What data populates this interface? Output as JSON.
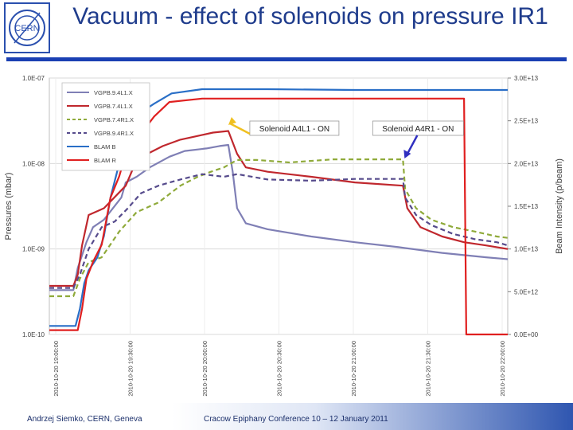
{
  "slide": {
    "title": "Vacuum - effect of solenoids on pressure IR1",
    "logo_text": "CERN",
    "footer_left": "Andrzej Siemko, CERN, Geneva",
    "footer_center": "Cracow Epiphany Conference   10 – 12 January 2011"
  },
  "colors": {
    "title": "#1f3c8c",
    "bar": "#1a3fb3"
  },
  "chart_data": {
    "type": "line",
    "ylabel": "Pressures (mbar)",
    "y2label": "Beam Intensity (p/beam)",
    "y_scale": "log",
    "ylim": [
      1e-10,
      1e-07
    ],
    "y_ticks": [
      "1.0E-07",
      "1.0E-08",
      "1.0E-09",
      "1.0E-10"
    ],
    "y2lim": [
      0,
      30000000000000.0
    ],
    "y2_ticks": [
      "3.0E+13",
      "2.5E+13",
      "2.0E+13",
      "1.5E+13",
      "1.0E+13",
      "5.0E+12",
      "0.0E+00"
    ],
    "x_ticks": [
      "2010-10-20 19:00:00",
      "2010-10-20 19:30:00",
      "2010-10-20 20:00:00",
      "2010-10-20 20:30:00",
      "2010-10-20 21:00:00",
      "2010-10-20 21:30:00",
      "2010-10-20 22:00:00"
    ],
    "legend_position": "top-left",
    "annotations": [
      {
        "text": "Solenoid A4L1 - ON",
        "x": 82
      },
      {
        "text": "Solenoid A4R1 - ON",
        "x": 162
      }
    ],
    "series": [
      {
        "name": "VGPB.9.4L1.X",
        "axis": "left",
        "color": "#7f7fb5",
        "dash": "none",
        "points": [
          [
            0,
            3.3e-10
          ],
          [
            11,
            3.3e-10
          ],
          [
            13,
            6e-10
          ],
          [
            17,
            1.2e-09
          ],
          [
            20,
            1.8e-09
          ],
          [
            25,
            2.2e-09
          ],
          [
            33,
            4e-09
          ],
          [
            35,
            6e-09
          ],
          [
            40,
            7e-09
          ],
          [
            46,
            9e-09
          ],
          [
            55,
            1.2e-08
          ],
          [
            62,
            1.4e-08
          ],
          [
            72,
            1.5e-08
          ],
          [
            78,
            1.6e-08
          ],
          [
            82,
            1.65e-08
          ],
          [
            84,
            8e-09
          ],
          [
            86,
            3e-09
          ],
          [
            90,
            2e-09
          ],
          [
            100,
            1.7e-09
          ],
          [
            120,
            1.4e-09
          ],
          [
            140,
            1.2e-09
          ],
          [
            160,
            1.05e-09
          ],
          [
            180,
            9e-10
          ],
          [
            200,
            8e-10
          ],
          [
            210,
            7.6e-10
          ]
        ]
      },
      {
        "name": "VGPB.7.4L1.X",
        "axis": "left",
        "color": "#c0272d",
        "dash": "none",
        "points": [
          [
            0,
            3.7e-10
          ],
          [
            11,
            3.7e-10
          ],
          [
            13,
            5e-10
          ],
          [
            15,
            1.1e-09
          ],
          [
            18,
            2.5e-09
          ],
          [
            25,
            3e-09
          ],
          [
            35,
            5.5e-09
          ],
          [
            40,
            1.1e-08
          ],
          [
            45,
            1.3e-08
          ],
          [
            52,
            1.6e-08
          ],
          [
            60,
            1.9e-08
          ],
          [
            68,
            2.1e-08
          ],
          [
            75,
            2.3e-08
          ],
          [
            82,
            2.4e-08
          ],
          [
            86,
            1.3e-08
          ],
          [
            90,
            9e-09
          ],
          [
            100,
            8e-09
          ],
          [
            120,
            7e-09
          ],
          [
            140,
            6e-09
          ],
          [
            162,
            5.5e-09
          ],
          [
            164,
            3e-09
          ],
          [
            170,
            1.8e-09
          ],
          [
            180,
            1.4e-09
          ],
          [
            190,
            1.2e-09
          ],
          [
            200,
            1.1e-09
          ],
          [
            210,
            1e-09
          ]
        ]
      },
      {
        "name": "VGPB.7.4R1.X",
        "axis": "left",
        "color": "#8faa3a",
        "dash": "6,4",
        "points": [
          [
            0,
            2.8e-10
          ],
          [
            11,
            2.8e-10
          ],
          [
            14,
            4.5e-10
          ],
          [
            18,
            7e-10
          ],
          [
            24,
            8e-10
          ],
          [
            32,
            1.6e-09
          ],
          [
            40,
            2.7e-09
          ],
          [
            50,
            3.5e-09
          ],
          [
            60,
            5.5e-09
          ],
          [
            68,
            7e-09
          ],
          [
            74,
            8e-09
          ],
          [
            80,
            9e-09
          ],
          [
            86,
            1.1e-08
          ],
          [
            95,
            1.1e-08
          ],
          [
            110,
            1.03e-08
          ],
          [
            130,
            1.12e-08
          ],
          [
            150,
            1.12e-08
          ],
          [
            162,
            1.12e-08
          ],
          [
            163,
            5e-09
          ],
          [
            168,
            3e-09
          ],
          [
            175,
            2.2e-09
          ],
          [
            185,
            1.8e-09
          ],
          [
            195,
            1.6e-09
          ],
          [
            205,
            1.4e-09
          ],
          [
            210,
            1.35e-09
          ]
        ]
      },
      {
        "name": "VGPB.9.4R1.X",
        "axis": "left",
        "color": "#564b8c",
        "dash": "6,4",
        "points": [
          [
            0,
            3.5e-10
          ],
          [
            11,
            3.5e-10
          ],
          [
            14,
            5e-10
          ],
          [
            18,
            1e-09
          ],
          [
            24,
            1.8e-09
          ],
          [
            30,
            2.1e-09
          ],
          [
            36,
            3e-09
          ],
          [
            42,
            4.5e-09
          ],
          [
            50,
            5.5e-09
          ],
          [
            60,
            6.5e-09
          ],
          [
            70,
            7.5e-09
          ],
          [
            80,
            7e-09
          ],
          [
            86,
            7.5e-09
          ],
          [
            100,
            6.5e-09
          ],
          [
            120,
            6.3e-09
          ],
          [
            140,
            6.6e-09
          ],
          [
            162,
            6.6e-09
          ],
          [
            163,
            4e-09
          ],
          [
            168,
            2.5e-09
          ],
          [
            175,
            1.9e-09
          ],
          [
            185,
            1.5e-09
          ],
          [
            195,
            1.3e-09
          ],
          [
            205,
            1.2e-09
          ],
          [
            210,
            1.1e-09
          ]
        ]
      },
      {
        "name": "BLAM B",
        "axis": "right",
        "color": "#2a6fc7",
        "dash": "none",
        "points": [
          [
            0,
            1000000000000.0
          ],
          [
            12,
            1000000000000.0
          ],
          [
            14,
            3000000000000.0
          ],
          [
            16,
            6000000000000.0
          ],
          [
            18,
            7500000000000.0
          ],
          [
            22,
            9000000000000.0
          ],
          [
            25,
            11500000000000.0
          ],
          [
            28,
            16000000000000.0
          ],
          [
            32,
            20000000000000.0
          ],
          [
            35,
            22500000000000.0
          ],
          [
            38,
            24500000000000.0
          ],
          [
            42,
            26000000000000.0
          ],
          [
            48,
            27000000000000.0
          ],
          [
            56,
            28200000000000.0
          ],
          [
            70,
            28700000000000.0
          ],
          [
            100,
            28700000000000.0
          ],
          [
            140,
            28600000000000.0
          ],
          [
            180,
            28600000000000.0
          ],
          [
            210,
            28600000000000.0
          ]
        ]
      },
      {
        "name": "BLAM R",
        "axis": "right",
        "color": "#e02020",
        "dash": "none",
        "points": [
          [
            0,
            500000000000.0
          ],
          [
            13,
            500000000000.0
          ],
          [
            15,
            3000000000000.0
          ],
          [
            17,
            6500000000000.0
          ],
          [
            20,
            8500000000000.0
          ],
          [
            24,
            10500000000000.0
          ],
          [
            28,
            16000000000000.0
          ],
          [
            32,
            18500000000000.0
          ],
          [
            36,
            22000000000000.0
          ],
          [
            42,
            23500000000000.0
          ],
          [
            48,
            25500000000000.0
          ],
          [
            55,
            27200000000000.0
          ],
          [
            70,
            27600000000000.0
          ],
          [
            100,
            27600000000000.0
          ],
          [
            130,
            27600000000000.0
          ],
          [
            170,
            27600000000000.0
          ],
          [
            190,
            27600000000000.0
          ],
          [
            191,
            0
          ],
          [
            210,
            0
          ]
        ]
      }
    ]
  }
}
